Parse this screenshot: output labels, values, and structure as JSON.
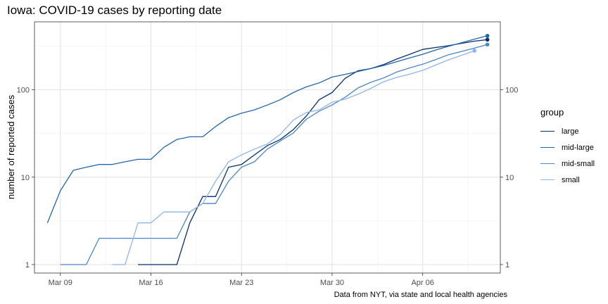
{
  "title": "Iowa: COVID-19 cases by reporting date",
  "caption": "Data from NYT, via state and local health agencies",
  "legend": {
    "title": "group"
  },
  "chart_data": {
    "type": "line",
    "title": "Iowa: COVID-19 cases by reporting date",
    "xlabel": "",
    "ylabel": "number of reported cases",
    "y_scale": "log10",
    "ylim": [
      0.8,
      600
    ],
    "xlim": [
      "2020-03-07",
      "2020-04-12"
    ],
    "x_ticks": [
      {
        "date": "2020-03-09",
        "label": "Mar 09"
      },
      {
        "date": "2020-03-16",
        "label": "Mar 16"
      },
      {
        "date": "2020-03-23",
        "label": "Mar 23"
      },
      {
        "date": "2020-03-30",
        "label": "Mar 30"
      },
      {
        "date": "2020-04-06",
        "label": "Apr 06"
      }
    ],
    "y_ticks": [
      1,
      10,
      100
    ],
    "y_tick_labels": [
      "1",
      "10",
      "100"
    ],
    "secondary_y_axis": true,
    "grid": true,
    "legend_position": "right",
    "series": [
      {
        "name": "large",
        "color": "#08306b",
        "points": [
          [
            "2020-03-15",
            1
          ],
          [
            "2020-03-16",
            1
          ],
          [
            "2020-03-17",
            1
          ],
          [
            "2020-03-18",
            1
          ],
          [
            "2020-03-19",
            3
          ],
          [
            "2020-03-20",
            6
          ],
          [
            "2020-03-21",
            6
          ],
          [
            "2020-03-22",
            13
          ],
          [
            "2020-03-23",
            14
          ],
          [
            "2020-03-24",
            18
          ],
          [
            "2020-03-25",
            23
          ],
          [
            "2020-03-26",
            27
          ],
          [
            "2020-03-27",
            35
          ],
          [
            "2020-03-28",
            50
          ],
          [
            "2020-03-29",
            77
          ],
          [
            "2020-03-30",
            93
          ],
          [
            "2020-03-31",
            135
          ],
          [
            "2020-04-01",
            165
          ],
          [
            "2020-04-02",
            175
          ],
          [
            "2020-04-03",
            195
          ],
          [
            "2020-04-04",
            225
          ],
          [
            "2020-04-05",
            255
          ],
          [
            "2020-04-06",
            290
          ],
          [
            "2020-04-07",
            305
          ],
          [
            "2020-04-08",
            320
          ],
          [
            "2020-04-09",
            340
          ],
          [
            "2020-04-10",
            360
          ],
          [
            "2020-04-11",
            375
          ]
        ]
      },
      {
        "name": "mid-large",
        "color": "#2166ac",
        "points": [
          [
            "2020-03-08",
            3
          ],
          [
            "2020-03-09",
            7
          ],
          [
            "2020-03-10",
            12
          ],
          [
            "2020-03-11",
            13
          ],
          [
            "2020-03-12",
            14
          ],
          [
            "2020-03-13",
            14
          ],
          [
            "2020-03-14",
            15
          ],
          [
            "2020-03-15",
            16
          ],
          [
            "2020-03-16",
            16
          ],
          [
            "2020-03-17",
            22
          ],
          [
            "2020-03-18",
            27
          ],
          [
            "2020-03-19",
            29
          ],
          [
            "2020-03-20",
            29
          ],
          [
            "2020-03-21",
            38
          ],
          [
            "2020-03-22",
            48
          ],
          [
            "2020-03-23",
            54
          ],
          [
            "2020-03-24",
            59
          ],
          [
            "2020-03-25",
            67
          ],
          [
            "2020-03-26",
            77
          ],
          [
            "2020-03-27",
            93
          ],
          [
            "2020-03-28",
            108
          ],
          [
            "2020-03-29",
            120
          ],
          [
            "2020-03-30",
            140
          ],
          [
            "2020-03-31",
            150
          ],
          [
            "2020-04-01",
            162
          ],
          [
            "2020-04-02",
            175
          ],
          [
            "2020-04-03",
            190
          ],
          [
            "2020-04-04",
            210
          ],
          [
            "2020-04-05",
            232
          ],
          [
            "2020-04-06",
            255
          ],
          [
            "2020-04-07",
            285
          ],
          [
            "2020-04-08",
            315
          ],
          [
            "2020-04-09",
            345
          ],
          [
            "2020-04-10",
            380
          ],
          [
            "2020-04-11",
            415
          ]
        ]
      },
      {
        "name": "mid-small",
        "color": "#4a86c8",
        "points": [
          [
            "2020-03-09",
            1
          ],
          [
            "2020-03-10",
            1
          ],
          [
            "2020-03-11",
            1
          ],
          [
            "2020-03-12",
            2
          ],
          [
            "2020-03-13",
            2
          ],
          [
            "2020-03-14",
            2
          ],
          [
            "2020-03-15",
            2
          ],
          [
            "2020-03-16",
            2
          ],
          [
            "2020-03-17",
            2
          ],
          [
            "2020-03-18",
            2
          ],
          [
            "2020-03-19",
            4
          ],
          [
            "2020-03-20",
            5
          ],
          [
            "2020-03-21",
            5
          ],
          [
            "2020-03-22",
            9
          ],
          [
            "2020-03-23",
            13
          ],
          [
            "2020-03-24",
            15
          ],
          [
            "2020-03-25",
            21
          ],
          [
            "2020-03-26",
            26
          ],
          [
            "2020-03-27",
            32
          ],
          [
            "2020-03-28",
            46
          ],
          [
            "2020-03-29",
            57
          ],
          [
            "2020-03-30",
            67
          ],
          [
            "2020-03-31",
            82
          ],
          [
            "2020-04-01",
            105
          ],
          [
            "2020-04-02",
            122
          ],
          [
            "2020-04-03",
            137
          ],
          [
            "2020-04-04",
            160
          ],
          [
            "2020-04-05",
            178
          ],
          [
            "2020-04-06",
            196
          ],
          [
            "2020-04-07",
            222
          ],
          [
            "2020-04-08",
            252
          ],
          [
            "2020-04-09",
            275
          ],
          [
            "2020-04-10",
            300
          ],
          [
            "2020-04-11",
            330
          ]
        ]
      },
      {
        "name": "small",
        "color": "#8fb6e8",
        "points": [
          [
            "2020-03-13",
            1
          ],
          [
            "2020-03-14",
            1
          ],
          [
            "2020-03-15",
            3
          ],
          [
            "2020-03-16",
            3
          ],
          [
            "2020-03-17",
            4
          ],
          [
            "2020-03-18",
            4
          ],
          [
            "2020-03-19",
            4
          ],
          [
            "2020-03-20",
            5
          ],
          [
            "2020-03-21",
            9
          ],
          [
            "2020-03-22",
            15
          ],
          [
            "2020-03-23",
            18
          ],
          [
            "2020-03-24",
            21
          ],
          [
            "2020-03-25",
            24
          ],
          [
            "2020-03-26",
            31
          ],
          [
            "2020-03-27",
            45
          ],
          [
            "2020-03-28",
            55
          ],
          [
            "2020-03-29",
            59
          ],
          [
            "2020-03-30",
            72
          ],
          [
            "2020-03-31",
            78
          ],
          [
            "2020-04-01",
            89
          ],
          [
            "2020-04-02",
            104
          ],
          [
            "2020-04-03",
            124
          ],
          [
            "2020-04-04",
            139
          ],
          [
            "2020-04-05",
            151
          ],
          [
            "2020-04-06",
            167
          ],
          [
            "2020-04-07",
            192
          ],
          [
            "2020-04-08",
            220
          ],
          [
            "2020-04-09",
            248
          ],
          [
            "2020-04-10",
            280
          ]
        ]
      }
    ]
  }
}
